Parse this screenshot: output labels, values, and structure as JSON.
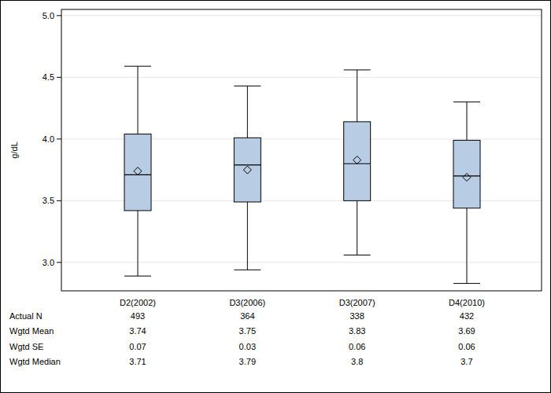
{
  "chart_data": {
    "type": "box",
    "y_label": "g/dL",
    "categories": [
      "D2(2002)",
      "D3(2006)",
      "D3(2007)",
      "D4(2010)"
    ],
    "whisker_low": [
      2.89,
      2.94,
      3.06,
      2.83
    ],
    "q1": [
      3.42,
      3.49,
      3.5,
      3.44
    ],
    "median": [
      3.71,
      3.79,
      3.8,
      3.7
    ],
    "q3": [
      4.04,
      4.01,
      4.14,
      3.99
    ],
    "whisker_high": [
      4.59,
      4.43,
      4.56,
      4.3
    ],
    "mean": [
      3.74,
      3.75,
      3.83,
      3.69
    ],
    "color": "#b8cce4",
    "ylim": [
      2.77,
      5.05
    ],
    "yticks": [
      {
        "value": 3,
        "label": "3.0"
      },
      {
        "value": 3.5,
        "label": "3.5"
      },
      {
        "value": 4,
        "label": "4.0"
      },
      {
        "value": 4.5,
        "label": "4.5"
      },
      {
        "value": 5,
        "label": "5.0"
      }
    ],
    "grid": true,
    "marker": "diamond",
    "table": [
      {
        "label": "Actual N",
        "values": [
          493,
          364,
          338,
          432
        ]
      },
      {
        "label": "Wgtd Mean",
        "values": [
          3.74,
          3.75,
          3.83,
          3.69
        ]
      },
      {
        "label": "Wgtd SE",
        "values": [
          0.07,
          0.03,
          0.06,
          0.06
        ]
      },
      {
        "label": "Wgtd Median",
        "values": [
          3.71,
          3.79,
          3.8,
          3.7
        ]
      }
    ]
  }
}
